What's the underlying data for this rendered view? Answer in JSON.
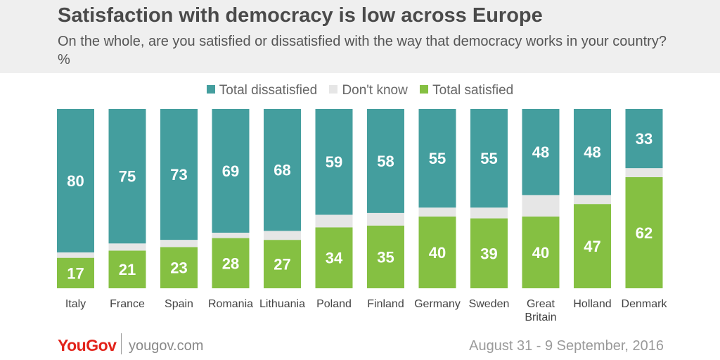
{
  "header": {
    "title": "Satisfaction with democracy is low across Europe",
    "subtitle": "On the whole, are you satisfied or dissatisfied with the way that democracy works in your country? %"
  },
  "footer": {
    "brand": "YouGov",
    "site": "yougov.com",
    "date": "August 31 - 9 September, 2016"
  },
  "colors": {
    "dissatisfied": "#449e9e",
    "dont_know": "#e6e6e6",
    "satisfied": "#85c042",
    "brand": "#e2231a"
  },
  "chart_data": {
    "type": "bar",
    "stacked": true,
    "title": "Satisfaction with democracy is low across Europe",
    "categories": [
      "Italy",
      "France",
      "Spain",
      "Romania",
      "Lithuania",
      "Poland",
      "Finland",
      "Germany",
      "Sweden",
      "Great Britain",
      "Holland",
      "Denmark"
    ],
    "category_lines": [
      [
        "Italy"
      ],
      [
        "France"
      ],
      [
        "Spain"
      ],
      [
        "Romania"
      ],
      [
        "Lithuania"
      ],
      [
        "Poland"
      ],
      [
        "Finland"
      ],
      [
        "Germany"
      ],
      [
        "Sweden"
      ],
      [
        "Great",
        "Britain"
      ],
      [
        "Holland"
      ],
      [
        "Denmark"
      ]
    ],
    "series": [
      {
        "name": "Total satisfied",
        "values": [
          17,
          21,
          23,
          28,
          27,
          34,
          35,
          40,
          39,
          40,
          47,
          62
        ],
        "labeled": true
      },
      {
        "name": "Don't know",
        "values": [
          3,
          4,
          4,
          3,
          5,
          7,
          7,
          5,
          6,
          12,
          5,
          5
        ],
        "labeled": false
      },
      {
        "name": "Total dissatisfied",
        "values": [
          80,
          75,
          73,
          69,
          68,
          59,
          58,
          55,
          55,
          48,
          48,
          33
        ],
        "labeled": true
      }
    ],
    "legend": [
      "Total dissatisfied",
      "Don't know",
      "Total satisfied"
    ],
    "ylim": [
      0,
      100
    ],
    "xlabel": "",
    "ylabel": "%"
  }
}
